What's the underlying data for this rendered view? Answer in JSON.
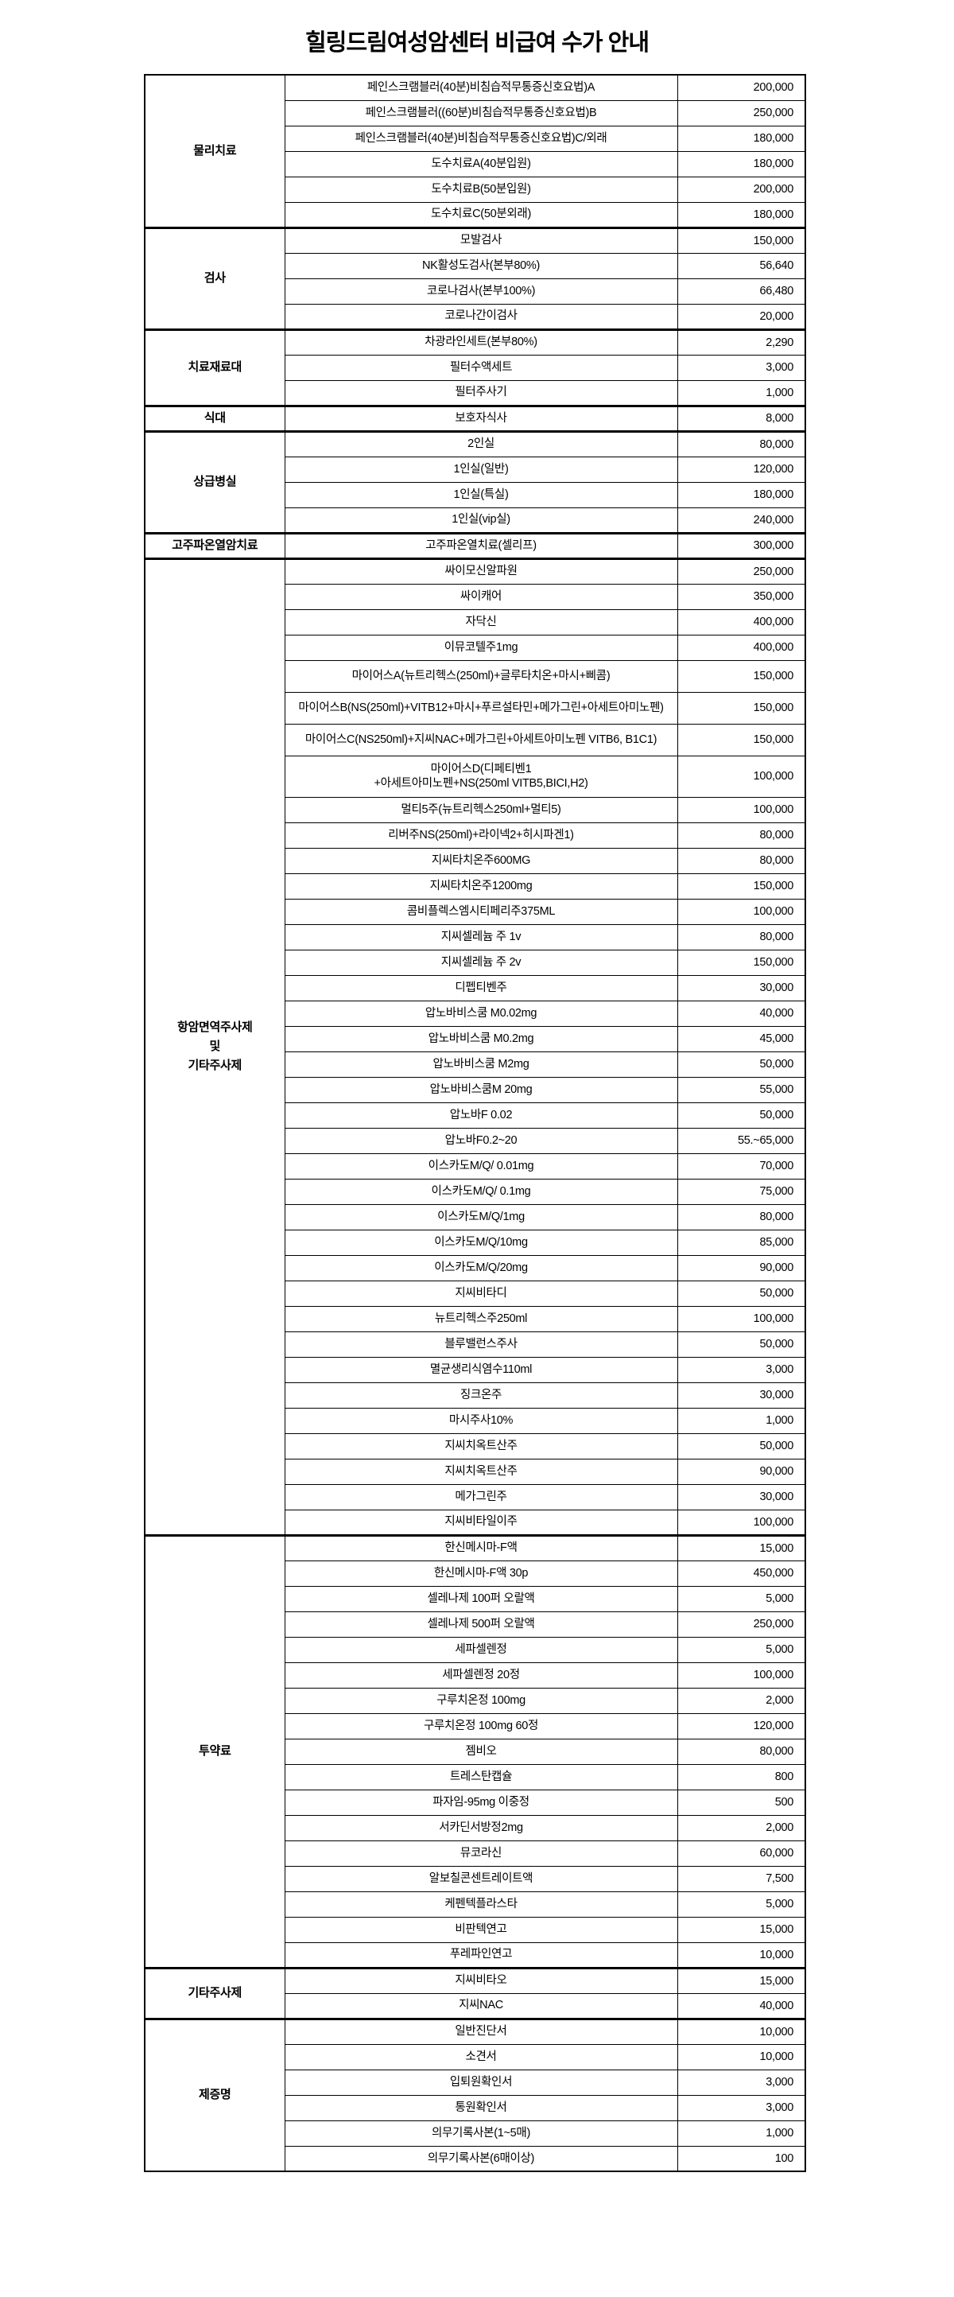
{
  "title": "힐링드림여성암센터 비급여 수가 안내",
  "groups": [
    {
      "category": "물리치료",
      "items": [
        {
          "name": "페인스크램블러(40분)비침습적무통증신호요법)A",
          "price": "200,000"
        },
        {
          "name": "페인스크램블러((60분)비침습적무통증신호요법)B",
          "price": "250,000"
        },
        {
          "name": "페인스크램블러(40분)비침습적무통증신호요법)C/외래",
          "price": "180,000"
        },
        {
          "name": "도수치료A(40분입원)",
          "price": "180,000"
        },
        {
          "name": "도수치료B(50분입원)",
          "price": "200,000"
        },
        {
          "name": "도수치료C(50분외래)",
          "price": "180,000"
        }
      ]
    },
    {
      "category": "검사",
      "items": [
        {
          "name": "모발검사",
          "price": "150,000"
        },
        {
          "name": "NK활성도검사(본부80%)",
          "price": "56,640"
        },
        {
          "name": "코로나검사(본부100%)",
          "price": "66,480"
        },
        {
          "name": "코로나간이검사",
          "price": "20,000"
        }
      ]
    },
    {
      "category": "치료재료대",
      "items": [
        {
          "name": "차광라인세트(본부80%)",
          "price": "2,290"
        },
        {
          "name": "필터수액세트",
          "price": "3,000"
        },
        {
          "name": "필터주사기",
          "price": "1,000"
        }
      ]
    },
    {
      "category": "식대",
      "items": [
        {
          "name": "보호자식사",
          "price": "8,000"
        }
      ]
    },
    {
      "category": "상급병실",
      "items": [
        {
          "name": "2인실",
          "price": "80,000"
        },
        {
          "name": "1인실(일반)",
          "price": "120,000"
        },
        {
          "name": "1인실(특실)",
          "price": "180,000"
        },
        {
          "name": "1인실(vip실)",
          "price": "240,000"
        }
      ]
    },
    {
      "category": "고주파온열암치료",
      "items": [
        {
          "name": "고주파온열치료(셀리프)",
          "price": "300,000"
        }
      ]
    },
    {
      "category": "항암면역주사제\n및\n기타주사제",
      "items": [
        {
          "name": "싸이모신알파원",
          "price": "250,000"
        },
        {
          "name": "싸이캐어",
          "price": "350,000"
        },
        {
          "name": "자닥신",
          "price": "400,000"
        },
        {
          "name": "이뮤코텔주1mg",
          "price": "400,000"
        },
        {
          "name": "마이어스A(뉴트리헥스(250ml)+글루타치온+마시+삐콤)",
          "price": "150,000",
          "tall": 1
        },
        {
          "name": "마이어스B(NS(250ml)+VITB12+마시+푸르설타민+메가그린+아세트아미노펜)",
          "price": "150,000",
          "tall": 1
        },
        {
          "name": "마이어스C(NS250ml)+지씨NAC+메가그린+아세트아미노펜 VITB6, B1C1)",
          "price": "150,000",
          "tall": 1
        },
        {
          "name": "마이어스D(디페티벤1\n+아세트아미노펜+NS(250ml VITB5,BICI,H2)",
          "price": "100,000",
          "tall": 2
        },
        {
          "name": "멀티5주(뉴트리헥스250ml+멀티5)",
          "price": "100,000"
        },
        {
          "name": "리버주NS(250ml)+라이넥2+히시파겐1)",
          "price": "80,000"
        },
        {
          "name": "지씨타치온주600MG",
          "price": "80,000"
        },
        {
          "name": "지씨타치온주1200mg",
          "price": "150,000"
        },
        {
          "name": "콤비플렉스엠시티페리주375ML",
          "price": "100,000"
        },
        {
          "name": "지씨셀레늄 주 1v",
          "price": "80,000"
        },
        {
          "name": "지씨셀레늄 주 2v",
          "price": "150,000"
        },
        {
          "name": "디펩티벤주",
          "price": "30,000"
        },
        {
          "name": "압노바비스쿰 M0.02mg",
          "price": "40,000"
        },
        {
          "name": "압노바비스쿰 M0.2mg",
          "price": "45,000"
        },
        {
          "name": "압노바비스쿰 M2mg",
          "price": "50,000"
        },
        {
          "name": "압노바비스쿰M 20mg",
          "price": "55,000"
        },
        {
          "name": "압노바F 0.02",
          "price": "50,000"
        },
        {
          "name": "압노바F0.2~20",
          "price": "55.~65,000"
        },
        {
          "name": "이스카도M/Q/ 0.01mg",
          "price": "70,000"
        },
        {
          "name": "이스카도M/Q/ 0.1mg",
          "price": "75,000"
        },
        {
          "name": "이스카도M/Q/1mg",
          "price": "80,000"
        },
        {
          "name": "이스카도M/Q/10mg",
          "price": "85,000"
        },
        {
          "name": "이스카도M/Q/20mg",
          "price": "90,000"
        },
        {
          "name": "지씨비타디",
          "price": "50,000"
        },
        {
          "name": "뉴트리헥스주250ml",
          "price": "100,000"
        },
        {
          "name": "블루밸런스주사",
          "price": "50,000"
        },
        {
          "name": "멸균생리식염수110ml",
          "price": "3,000"
        },
        {
          "name": "징크온주",
          "price": "30,000"
        },
        {
          "name": "마시주사10%",
          "price": "1,000"
        },
        {
          "name": "지씨치옥트산주",
          "price": "50,000"
        },
        {
          "name": "지씨치옥트산주",
          "price": "90,000"
        },
        {
          "name": "메가그린주",
          "price": "30,000"
        },
        {
          "name": "지씨비타일이주",
          "price": "100,000"
        }
      ]
    },
    {
      "category": "투약료",
      "items": [
        {
          "name": "한신메시마-F액",
          "price": "15,000"
        },
        {
          "name": "한신메시마-F액 30p",
          "price": "450,000"
        },
        {
          "name": "셀레나제 100퍼 오랄액",
          "price": "5,000"
        },
        {
          "name": "셀레나제 500퍼 오랄액",
          "price": "250,000"
        },
        {
          "name": "세파셀렌정",
          "price": "5,000"
        },
        {
          "name": "세파셀렌정 20정",
          "price": "100,000"
        },
        {
          "name": "구루치온정 100mg",
          "price": "2,000"
        },
        {
          "name": "구루치온정 100mg 60정",
          "price": "120,000"
        },
        {
          "name": "젬비오",
          "price": "80,000"
        },
        {
          "name": "트레스탄캡슐",
          "price": "800"
        },
        {
          "name": "파자임-95mg 이중정",
          "price": "500"
        },
        {
          "name": "서카딘서방정2mg",
          "price": "2,000"
        },
        {
          "name": "뮤코라신",
          "price": "60,000"
        },
        {
          "name": "알보칠콘센트레이트액",
          "price": "7,500"
        },
        {
          "name": "케펜텍플라스타",
          "price": "5,000"
        },
        {
          "name": "비판텍연고",
          "price": "15,000"
        },
        {
          "name": "푸레파인연고",
          "price": "10,000"
        }
      ]
    },
    {
      "category": "기타주사제",
      "items": [
        {
          "name": "지씨비타오",
          "price": "15,000"
        },
        {
          "name": "지씨NAC",
          "price": "40,000"
        }
      ]
    },
    {
      "category": "제증명",
      "items": [
        {
          "name": "일반진단서",
          "price": "10,000"
        },
        {
          "name": "소견서",
          "price": "10,000"
        },
        {
          "name": "입퇴원확인서",
          "price": "3,000"
        },
        {
          "name": "통원확인서",
          "price": "3,000"
        },
        {
          "name": "의무기록사본(1~5매)",
          "price": "1,000"
        },
        {
          "name": "의무기록사본(6매이상)",
          "price": "100"
        }
      ]
    }
  ]
}
